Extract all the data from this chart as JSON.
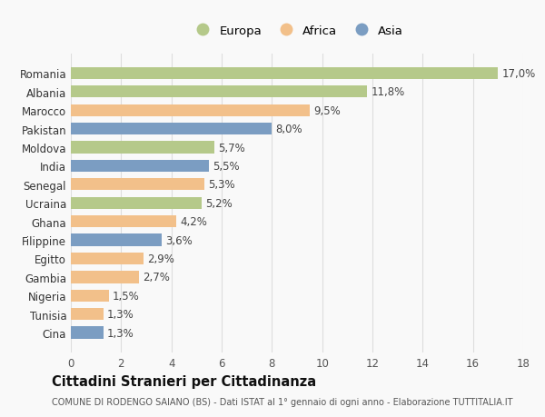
{
  "countries": [
    "Romania",
    "Albania",
    "Marocco",
    "Pakistan",
    "Moldova",
    "India",
    "Senegal",
    "Ucraina",
    "Ghana",
    "Filippine",
    "Egitto",
    "Gambia",
    "Nigeria",
    "Tunisia",
    "Cina"
  ],
  "values": [
    17.0,
    11.8,
    9.5,
    8.0,
    5.7,
    5.5,
    5.3,
    5.2,
    4.2,
    3.6,
    2.9,
    2.7,
    1.5,
    1.3,
    1.3
  ],
  "labels": [
    "17,0%",
    "11,8%",
    "9,5%",
    "8,0%",
    "5,7%",
    "5,5%",
    "5,3%",
    "5,2%",
    "4,2%",
    "3,6%",
    "2,9%",
    "2,7%",
    "1,5%",
    "1,3%",
    "1,3%"
  ],
  "continent": [
    "Europa",
    "Europa",
    "Africa",
    "Asia",
    "Europa",
    "Asia",
    "Africa",
    "Europa",
    "Africa",
    "Asia",
    "Africa",
    "Africa",
    "Africa",
    "Africa",
    "Asia"
  ],
  "colors": {
    "Europa": "#b5c98a",
    "Africa": "#f2c08a",
    "Asia": "#7b9dc2"
  },
  "legend_order": [
    "Europa",
    "Africa",
    "Asia"
  ],
  "xlim": [
    0,
    18
  ],
  "xticks": [
    0,
    2,
    4,
    6,
    8,
    10,
    12,
    14,
    16,
    18
  ],
  "title": "Cittadini Stranieri per Cittadinanza",
  "subtitle": "COMUNE DI RODENGO SAIANO (BS) - Dati ISTAT al 1° gennaio di ogni anno - Elaborazione TUTTITALIA.IT",
  "bg_color": "#f9f9f9",
  "grid_color": "#dddddd",
  "bar_height": 0.65,
  "label_fontsize": 8.5,
  "title_fontsize": 10.5,
  "subtitle_fontsize": 7.0,
  "tick_fontsize": 8.5
}
